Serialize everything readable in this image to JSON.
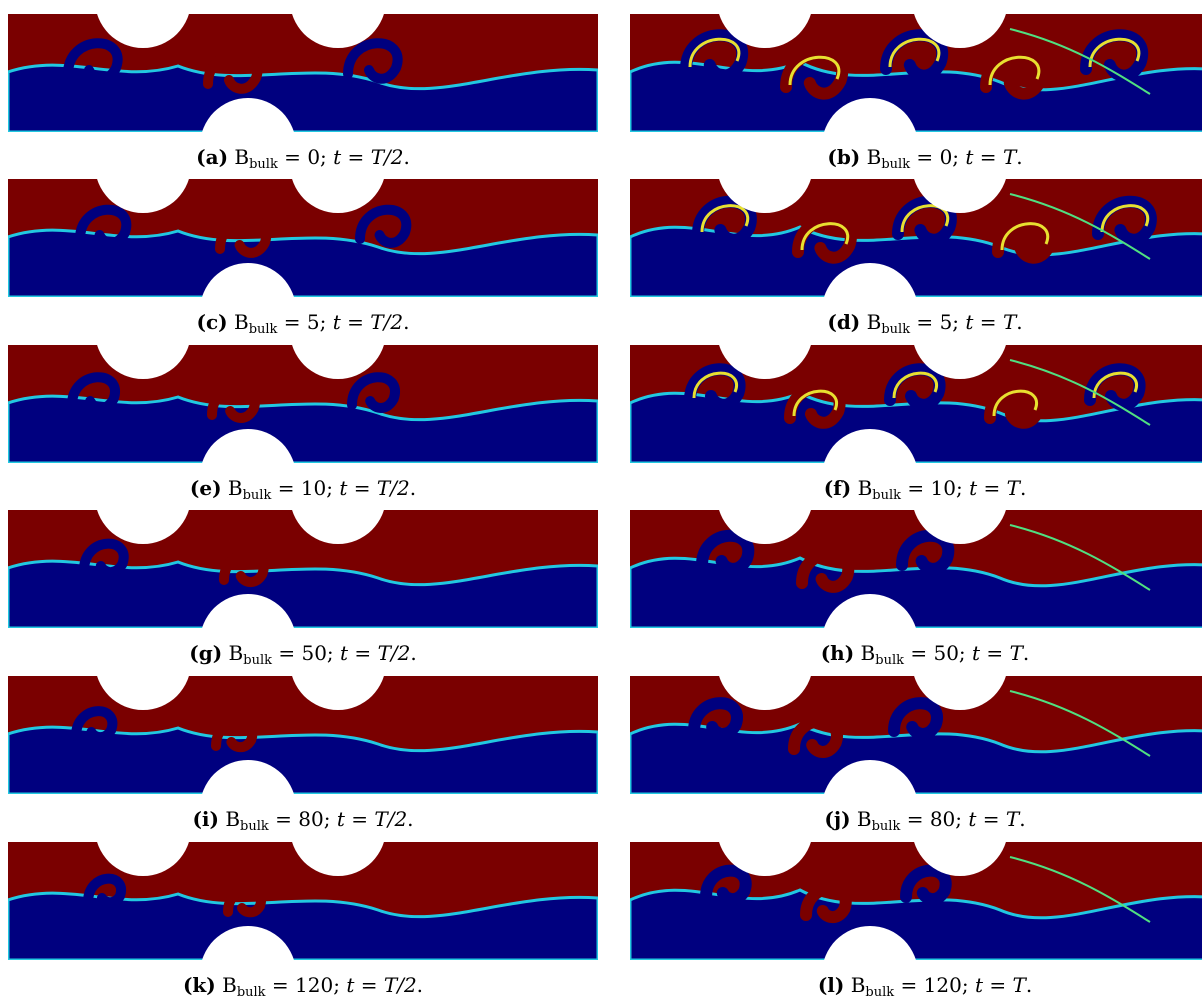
{
  "figure": {
    "panels": [
      {
        "id": "a",
        "tag": "(a)",
        "b_value": "0",
        "time": "T/2",
        "snapshot": "half"
      },
      {
        "id": "b",
        "tag": "(b)",
        "b_value": "0",
        "time": "T",
        "snapshot": "full"
      },
      {
        "id": "c",
        "tag": "(c)",
        "b_value": "5",
        "time": "T/2",
        "snapshot": "half"
      },
      {
        "id": "d",
        "tag": "(d)",
        "b_value": "5",
        "time": "T",
        "snapshot": "full"
      },
      {
        "id": "e",
        "tag": "(e)",
        "b_value": "10",
        "time": "T/2",
        "snapshot": "half"
      },
      {
        "id": "f",
        "tag": "(f)",
        "b_value": "10",
        "time": "T",
        "snapshot": "full"
      },
      {
        "id": "g",
        "tag": "(g)",
        "b_value": "50",
        "time": "T/2",
        "snapshot": "half"
      },
      {
        "id": "h",
        "tag": "(h)",
        "b_value": "50",
        "time": "T",
        "snapshot": "full"
      },
      {
        "id": "i",
        "tag": "(i)",
        "b_value": "80",
        "time": "T/2",
        "snapshot": "half"
      },
      {
        "id": "j",
        "tag": "(j)",
        "b_value": "80",
        "time": "T",
        "snapshot": "full"
      },
      {
        "id": "k",
        "tag": "(k)",
        "b_value": "120",
        "time": "T/2",
        "snapshot": "half"
      },
      {
        "id": "l",
        "tag": "(l)",
        "b_value": "120",
        "time": "T",
        "snapshot": "full"
      }
    ],
    "symbol_b": "B",
    "subscript": "bulk",
    "symbol_t": "t",
    "colors": {
      "phase_red": "#7a0000",
      "phase_blue": "#00007f",
      "interface_cyan": "#22c8e0",
      "interface_yellow": "#e8e030",
      "interface_green": "#50e080"
    }
  }
}
